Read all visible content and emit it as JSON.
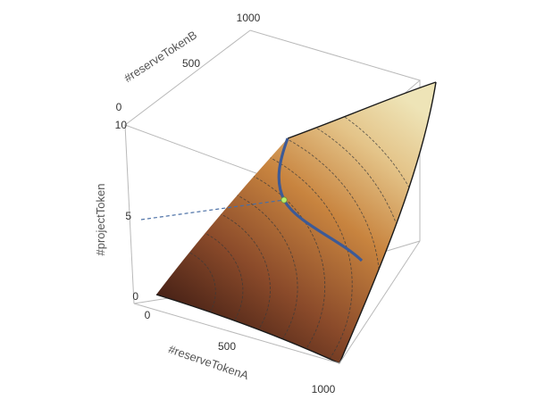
{
  "chart_data": {
    "type": "surface3d",
    "axes": {
      "x": {
        "label": "#reserveTokenA",
        "ticks": [
          "0",
          "500",
          "1000"
        ],
        "range": [
          0,
          1000
        ]
      },
      "y": {
        "label": "#reserveTokenB",
        "ticks": [
          "0",
          "500",
          "1000"
        ],
        "range": [
          0,
          1000
        ]
      },
      "z": {
        "label": "#projectToken",
        "ticks": [
          "0",
          "5",
          "10"
        ],
        "range": [
          0,
          10
        ]
      }
    },
    "surface": {
      "colormap": [
        "#4a2317",
        "#8a4a2a",
        "#c8843f",
        "#e4c489",
        "#eee4b7"
      ],
      "contour_levels": [
        1,
        2,
        3,
        4,
        5,
        6,
        7,
        8,
        9
      ]
    },
    "highlight_curve": {
      "level": 6,
      "color": "#3d5a96"
    },
    "marker": {
      "z": 5.7,
      "color": "#b6ef6b",
      "dashed_line_color": "#4a6fa5"
    }
  }
}
